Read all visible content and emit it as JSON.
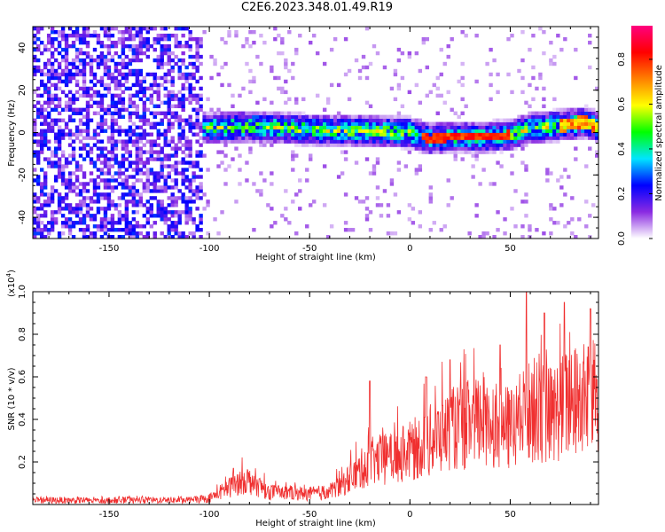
{
  "title": "C2E6.2023.348.01.49.R19",
  "chart_data": [
    {
      "type": "heatmap",
      "xlabel": "Height of straight line (km)",
      "ylabel": "Frequency (Hz)",
      "xlim": [
        -188,
        94
      ],
      "ylim": [
        -50,
        50
      ],
      "xticks": [
        "-150",
        "-100",
        "-50",
        "0",
        "50"
      ],
      "yticks": [
        "-40",
        "-20",
        "0",
        "20",
        "40"
      ],
      "colorbar": {
        "label": "Normalized spectral amplitude",
        "range": [
          0.0,
          0.95
        ],
        "ticks": [
          "0.0",
          "0.2",
          "0.4",
          "0.6",
          "0.8"
        ],
        "colors": [
          "#ffffff",
          "#8a2be2",
          "#0000ff",
          "#00e5ff",
          "#00ff00",
          "#ffff00",
          "#ff8000",
          "#ff0000",
          "#ff007f"
        ]
      },
      "ridge": {
        "start_x": -104,
        "frequency_center": [
          [
            -104,
            2
          ],
          [
            -80,
            3
          ],
          [
            -60,
            2
          ],
          [
            -40,
            1
          ],
          [
            -20,
            1
          ],
          [
            0,
            0
          ],
          [
            10,
            -3
          ],
          [
            20,
            -2
          ],
          [
            30,
            -2
          ],
          [
            40,
            -2
          ],
          [
            50,
            -1
          ],
          [
            60,
            2
          ],
          [
            70,
            3
          ],
          [
            80,
            4
          ],
          [
            88,
            5
          ],
          [
            94,
            2
          ]
        ],
        "width_hz": 10,
        "peak_amplitude": 0.85
      }
    },
    {
      "type": "line",
      "xlabel": "Height of straight line (km)",
      "ylabel": "SNR (10 * v/v)",
      "scale_label": "(x10",
      "scale_exp": "4",
      "scale_close": ")",
      "xlim": [
        -188,
        94
      ],
      "ylim": [
        0.0,
        1.0
      ],
      "xticks": [
        "-150",
        "-100",
        "-50",
        "0",
        "50"
      ],
      "yticks": [
        "0.2",
        "0.4",
        "0.6",
        "0.8",
        "1.0"
      ],
      "color": "#f03030",
      "envelope": [
        [
          -188,
          0.02
        ],
        [
          -110,
          0.02
        ],
        [
          -100,
          0.03
        ],
        [
          -90,
          0.08
        ],
        [
          -82,
          0.12
        ],
        [
          -70,
          0.06
        ],
        [
          -50,
          0.05
        ],
        [
          -40,
          0.06
        ],
        [
          -30,
          0.12
        ],
        [
          -20,
          0.2
        ],
        [
          -10,
          0.22
        ],
        [
          0,
          0.25
        ],
        [
          10,
          0.3
        ],
        [
          20,
          0.35
        ],
        [
          30,
          0.38
        ],
        [
          40,
          0.4
        ],
        [
          50,
          0.35
        ],
        [
          60,
          0.45
        ],
        [
          70,
          0.42
        ],
        [
          80,
          0.48
        ],
        [
          90,
          0.5
        ],
        [
          94,
          0.5
        ]
      ],
      "spikes": [
        [
          -88,
          0.17
        ],
        [
          -20,
          0.58
        ],
        [
          8,
          0.6
        ],
        [
          20,
          0.68
        ],
        [
          45,
          0.75
        ],
        [
          58,
          1.0
        ],
        [
          67,
          0.9
        ],
        [
          77,
          0.95
        ],
        [
          90,
          0.92
        ]
      ]
    }
  ]
}
